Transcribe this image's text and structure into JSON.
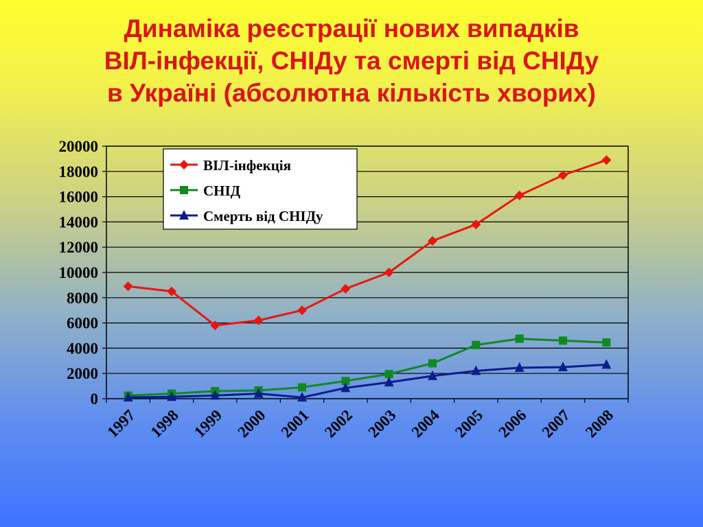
{
  "title_lines": [
    "Динаміка реєстрації нових випадків",
    "ВІЛ-інфекції, СНІДу та смерті від СНІДу",
    "в Україні (абсолютна кількість хворих)"
  ],
  "chart_data": {
    "type": "line",
    "title": "Динаміка реєстрації нових випадків ВІЛ-інфекції, СНІДу та смерті від СНІДу в Україні (абсолютна кількість хворих)",
    "xlabel": "",
    "ylabel": "",
    "categories": [
      "1997",
      "1998",
      "1999",
      "2000",
      "2001",
      "2002",
      "2003",
      "2004",
      "2005",
      "2006",
      "2007",
      "2008"
    ],
    "ylim": [
      0,
      20000
    ],
    "yticks": [
      0,
      2000,
      4000,
      6000,
      8000,
      10000,
      12000,
      14000,
      16000,
      18000,
      20000
    ],
    "grid": true,
    "legend_position": "top-left",
    "series": [
      {
        "name": "ВІЛ-інфекція",
        "color": "#e8160f",
        "marker": "diamond",
        "values": [
          8900,
          8500,
          5800,
          6200,
          7000,
          8700,
          10000,
          12500,
          13800,
          16100,
          17700,
          18900
        ]
      },
      {
        "name": "СНІД",
        "color": "#0e8a1e",
        "marker": "square",
        "values": [
          250,
          400,
          600,
          650,
          900,
          1400,
          1950,
          2800,
          4250,
          4750,
          4600,
          4450
        ]
      },
      {
        "name": "Смерть від СНІДу",
        "color": "#0b1d8c",
        "marker": "triangle",
        "values": [
          100,
          150,
          250,
          400,
          100,
          850,
          1300,
          1800,
          2200,
          2450,
          2500,
          2700
        ]
      }
    ]
  }
}
